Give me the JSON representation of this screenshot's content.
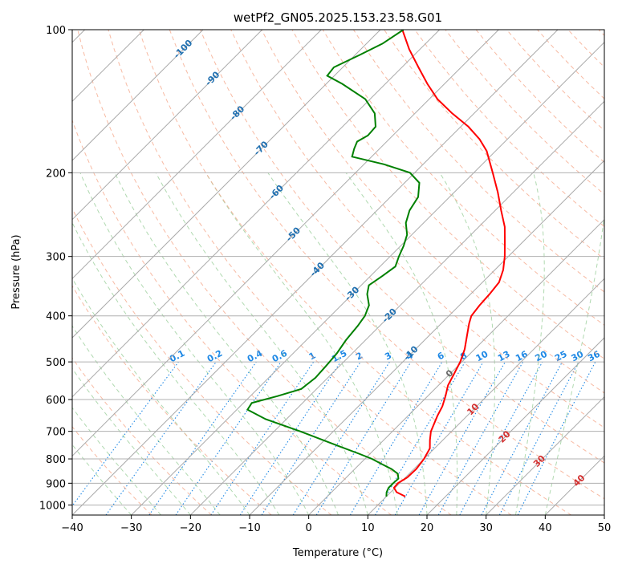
{
  "chart_data": {
    "type": "skew-t",
    "title": "wetPf2_GN05.2025.153.23.58.G01",
    "xlabel": "Temperature (°C)",
    "ylabel": "Pressure (hPa)",
    "xlim": [
      -40,
      50
    ],
    "ylim": [
      1050,
      100
    ],
    "y_scale": "log",
    "grid": true,
    "x_ticks": [
      -40,
      -30,
      -20,
      -10,
      0,
      10,
      20,
      30,
      40,
      50
    ],
    "x_tick_labels": [
      "−40",
      "−30",
      "−20",
      "−10",
      "0",
      "10",
      "20",
      "30",
      "40",
      "50"
    ],
    "y_ticks": [
      100,
      200,
      300,
      400,
      500,
      600,
      700,
      800,
      900,
      1000
    ],
    "isotherm_labels": [
      "-100",
      "-90",
      "-80",
      "-70",
      "-60",
      "-50",
      "-40",
      "-30",
      "-20",
      "-10",
      "0",
      "10",
      "20",
      "30",
      "40"
    ],
    "mixing_ratio_labels": [
      "0.1",
      "0.2",
      "0.4",
      "0.6",
      "1",
      "1.5",
      "2",
      "3",
      "4",
      "6",
      "8",
      "10",
      "13",
      "16",
      "20",
      "25",
      "30",
      "36"
    ],
    "series": [
      {
        "color": "#ff0000",
        "points": [
          [
            960,
            13.2
          ],
          [
            940,
            11.0
          ],
          [
            920,
            9.8
          ],
          [
            900,
            9.7
          ],
          [
            875,
            10.3
          ],
          [
            840,
            10.4
          ],
          [
            800,
            10.0
          ],
          [
            760,
            9.2
          ],
          [
            730,
            7.8
          ],
          [
            700,
            6.5
          ],
          [
            650,
            5.0
          ],
          [
            620,
            4.2
          ],
          [
            590,
            3.0
          ],
          [
            560,
            1.6
          ],
          [
            530,
            0.7
          ],
          [
            500,
            -0.3
          ],
          [
            470,
            -1.7
          ],
          [
            440,
            -3.6
          ],
          [
            415,
            -5.3
          ],
          [
            400,
            -6.2
          ],
          [
            380,
            -6.6
          ],
          [
            360,
            -6.8
          ],
          [
            340,
            -7.2
          ],
          [
            320,
            -8.6
          ],
          [
            300,
            -10.6
          ],
          [
            280,
            -13.0
          ],
          [
            260,
            -15.6
          ],
          [
            240,
            -19.0
          ],
          [
            220,
            -22.6
          ],
          [
            200,
            -26.8
          ],
          [
            180,
            -31.5
          ],
          [
            170,
            -34.7
          ],
          [
            160,
            -38.7
          ],
          [
            150,
            -43.7
          ],
          [
            140,
            -48.6
          ],
          [
            130,
            -52.9
          ],
          [
            120,
            -57.2
          ],
          [
            110,
            -61.8
          ],
          [
            100,
            -66.3
          ]
        ]
      },
      {
        "color": "#008000",
        "points": [
          [
            960,
            10.0
          ],
          [
            940,
            9.3
          ],
          [
            920,
            8.9
          ],
          [
            900,
            8.9
          ],
          [
            880,
            9.0
          ],
          [
            860,
            8.1
          ],
          [
            840,
            6.2
          ],
          [
            820,
            3.7
          ],
          [
            800,
            1.2
          ],
          [
            780,
            -1.9
          ],
          [
            750,
            -6.9
          ],
          [
            700,
            -15.6
          ],
          [
            660,
            -23.5
          ],
          [
            630,
            -28.2
          ],
          [
            610,
            -28.6
          ],
          [
            590,
            -25.4
          ],
          [
            570,
            -22.6
          ],
          [
            540,
            -22.1
          ],
          [
            510,
            -22.3
          ],
          [
            480,
            -22.6
          ],
          [
            450,
            -23.3
          ],
          [
            420,
            -23.7
          ],
          [
            400,
            -24.2
          ],
          [
            380,
            -25.3
          ],
          [
            360,
            -27.5
          ],
          [
            345,
            -28.7
          ],
          [
            330,
            -28.0
          ],
          [
            315,
            -27.4
          ],
          [
            300,
            -28.5
          ],
          [
            285,
            -29.5
          ],
          [
            270,
            -30.8
          ],
          [
            255,
            -33.0
          ],
          [
            240,
            -34.5
          ],
          [
            225,
            -35.3
          ],
          [
            210,
            -37.5
          ],
          [
            200,
            -40.8
          ],
          [
            192,
            -46.6
          ],
          [
            185,
            -53.3
          ],
          [
            178,
            -54.3
          ],
          [
            172,
            -55.0
          ],
          [
            167,
            -54.2
          ],
          [
            160,
            -54.4
          ],
          [
            150,
            -56.8
          ],
          [
            140,
            -60.8
          ],
          [
            130,
            -67.3
          ],
          [
            125,
            -71.2
          ],
          [
            120,
            -71.5
          ],
          [
            113,
            -69.2
          ],
          [
            107,
            -67.3
          ],
          [
            100,
            -66.1
          ]
        ]
      }
    ]
  }
}
